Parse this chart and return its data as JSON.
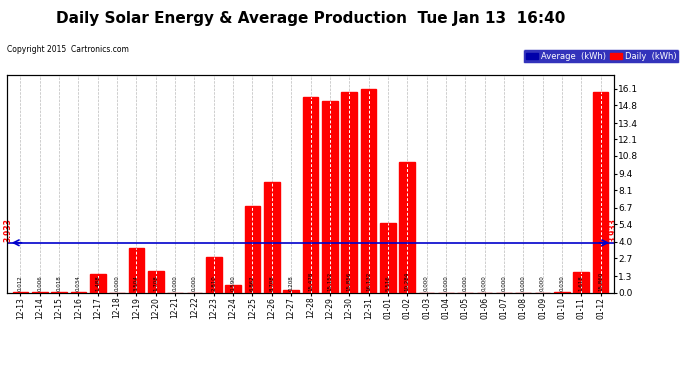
{
  "title": "Daily Solar Energy & Average Production  Tue Jan 13  16:40",
  "copyright": "Copyright 2015  Cartronics.com",
  "categories": [
    "12-13",
    "12-14",
    "12-15",
    "12-16",
    "12-17",
    "12-18",
    "12-19",
    "12-20",
    "12-21",
    "12-22",
    "12-23",
    "12-24",
    "12-25",
    "12-26",
    "12-27",
    "12-28",
    "12-29",
    "12-30",
    "12-31",
    "01-01",
    "01-02",
    "01-03",
    "01-04",
    "01-05",
    "01-06",
    "01-07",
    "01-08",
    "01-09",
    "01-10",
    "01-11",
    "01-12"
  ],
  "values": [
    0.012,
    0.006,
    0.018,
    0.034,
    1.488,
    0.0,
    3.504,
    1.708,
    0.0,
    0.0,
    2.81,
    0.59,
    6.862,
    8.708,
    0.208,
    15.478,
    15.152,
    15.856,
    16.132,
    5.516,
    10.284,
    0.0,
    0.0,
    0.0,
    0.0,
    0.0,
    0.0,
    0.0,
    0.03,
    1.618,
    15.86
  ],
  "average": 3.933,
  "bar_color": "#FF0000",
  "avg_line_color": "#0000CC",
  "avg_label_color": "#FF0000",
  "background_color": "#FFFFFF",
  "plot_bg_color": "#FFFFFF",
  "grid_color": "#BBBBBB",
  "title_fontsize": 11,
  "yticks": [
    0.0,
    1.3,
    2.7,
    4.0,
    5.4,
    6.7,
    8.1,
    9.4,
    10.8,
    12.1,
    13.4,
    14.8,
    16.1
  ],
  "legend_avg_color": "#0000AA",
  "legend_daily_color": "#FF0000",
  "ymax": 17.2
}
